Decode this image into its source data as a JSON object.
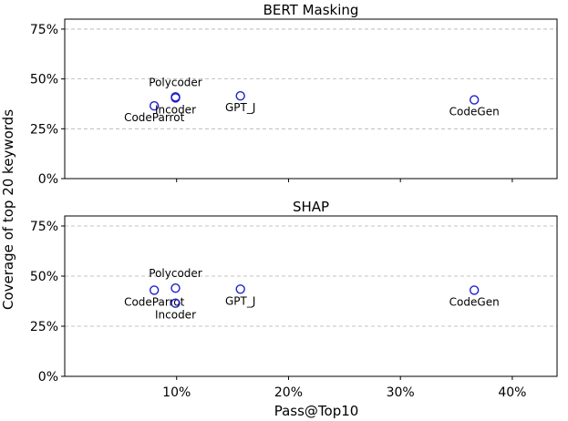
{
  "chart_data": [
    {
      "type": "scatter",
      "title": "BERT Masking",
      "xlabel": "Pass@Top10",
      "ylabel": "Coverage of top 20 keywords",
      "xlim": [
        0,
        44
      ],
      "ylim": [
        0,
        80
      ],
      "xticks": [
        10,
        20,
        30,
        40
      ],
      "xticklabels": [
        "10%",
        "20%",
        "30%",
        "40%"
      ],
      "yticks": [
        0,
        25,
        50,
        75
      ],
      "yticklabels": [
        "0%",
        "25%",
        "50%",
        "75%"
      ],
      "grid": "y-dashed",
      "marker_color": "#1f1fd0",
      "points": [
        {
          "label": "CodeParrot",
          "x": 8.0,
          "y": 36.5,
          "label_pos": "below"
        },
        {
          "label": "Polycoder",
          "x": 9.9,
          "y": 41.0,
          "label_pos": "above"
        },
        {
          "label": "Incoder",
          "x": 9.9,
          "y": 40.5,
          "label_pos": "below"
        },
        {
          "label": "GPT_J",
          "x": 15.7,
          "y": 41.5,
          "label_pos": "below"
        },
        {
          "label": "CodeGen",
          "x": 36.6,
          "y": 39.5,
          "label_pos": "below"
        }
      ]
    },
    {
      "type": "scatter",
      "title": "SHAP",
      "xlabel": "Pass@Top10",
      "ylabel": "Coverage of top 20 keywords",
      "xlim": [
        0,
        44
      ],
      "ylim": [
        0,
        80
      ],
      "xticks": [
        10,
        20,
        30,
        40
      ],
      "xticklabels": [
        "10%",
        "20%",
        "30%",
        "40%"
      ],
      "yticks": [
        0,
        25,
        50,
        75
      ],
      "yticklabels": [
        "0%",
        "25%",
        "50%",
        "75%"
      ],
      "grid": "y-dashed",
      "marker_color": "#1f1fd0",
      "points": [
        {
          "label": "CodeParrot",
          "x": 8.0,
          "y": 43.0,
          "label_pos": "below"
        },
        {
          "label": "Polycoder",
          "x": 9.9,
          "y": 44.0,
          "label_pos": "above"
        },
        {
          "label": "Incoder",
          "x": 9.9,
          "y": 36.5,
          "label_pos": "below"
        },
        {
          "label": "GPT_J",
          "x": 15.7,
          "y": 43.5,
          "label_pos": "below"
        },
        {
          "label": "CodeGen",
          "x": 36.6,
          "y": 43.0,
          "label_pos": "below"
        }
      ]
    }
  ],
  "figure": {
    "xlabel": "Pass@Top10",
    "ylabel": "Coverage of top 20 keywords"
  }
}
